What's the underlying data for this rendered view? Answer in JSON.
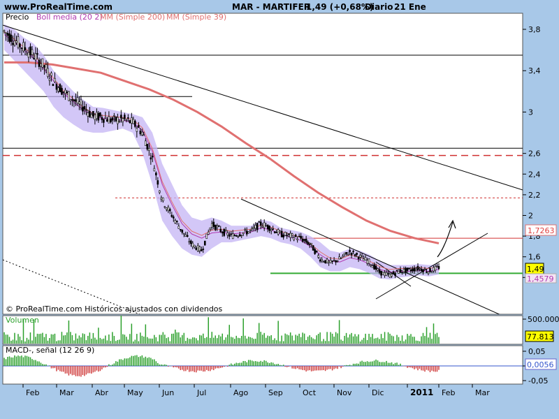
{
  "header": {
    "site": "www.ProRealTime.com",
    "symbol": "MAR - MARTIFER",
    "quote": "1,49 (+0,68%)",
    "period": "Diario",
    "date": "21 Ene"
  },
  "colors": {
    "background": "#a8c8e8",
    "panel": "#ffffff",
    "boll": "#c4b4f4",
    "mm200": "#e07070",
    "mm39": "#b03ab0",
    "macd_pos": "#2ca02c",
    "macd_neg": "#d04040",
    "volume": "#2ca02c",
    "support": "#33aa33"
  },
  "footer_note": "© ProRealTime.com Históricos ajustados con dividendos",
  "chart_data": [
    {
      "type": "candlestick",
      "legend": [
        {
          "label": "Precio",
          "color": "#000000"
        },
        {
          "label": "Boll media (20 2)",
          "color": "#b03ab0"
        },
        {
          "label": "MM (Simple 200)",
          "color": "#e07070"
        },
        {
          "label": "MM (Simple 39)",
          "color": "#e07070"
        }
      ],
      "ylim": [
        1.25,
        3.9
      ],
      "y_ticks": [
        "3,8",
        "3,4",
        "3",
        "2,6",
        "2,4",
        "2,2",
        "2",
        "1,8",
        "1,6",
        "1,4"
      ],
      "y_tick_values": [
        3.8,
        3.4,
        3.0,
        2.6,
        2.4,
        2.2,
        2.0,
        1.8,
        1.6,
        1.4
      ],
      "x_ticks": [
        "Feb",
        "Mar",
        "Abr",
        "May",
        "Jun",
        "Jul",
        "Ago",
        "Sep",
        "Oct",
        "Nov",
        "Dic",
        "2011",
        "Feb",
        "Mar"
      ],
      "price_series": [
        3.78,
        3.7,
        3.62,
        3.55,
        3.45,
        3.3,
        3.2,
        3.12,
        3.05,
        2.96,
        2.95,
        2.92,
        2.93,
        2.9,
        2.8,
        2.55,
        2.15,
        2.0,
        1.85,
        1.72,
        1.66,
        1.92,
        1.85,
        1.8,
        1.83,
        1.85,
        1.92,
        1.88,
        1.82,
        1.8,
        1.78,
        1.72,
        1.58,
        1.54,
        1.58,
        1.65,
        1.6,
        1.55,
        1.45,
        1.42,
        1.46,
        1.47,
        1.49,
        1.46,
        1.5
      ],
      "bollinger_upper": [
        3.85,
        3.8,
        3.72,
        3.66,
        3.55,
        3.4,
        3.3,
        3.2,
        3.12,
        3.05,
        3.04,
        3.02,
        3.0,
        2.98,
        2.95,
        2.8,
        2.5,
        2.3,
        2.1,
        1.98,
        1.95,
        1.98,
        1.95,
        1.9,
        1.9,
        1.9,
        1.96,
        1.94,
        1.88,
        1.86,
        1.84,
        1.8,
        1.74,
        1.66,
        1.64,
        1.68,
        1.66,
        1.62,
        1.56,
        1.52,
        1.52,
        1.52,
        1.53,
        1.52,
        1.53
      ],
      "bollinger_lower": [
        3.6,
        3.5,
        3.4,
        3.3,
        3.2,
        3.05,
        2.95,
        2.88,
        2.82,
        2.8,
        2.8,
        2.82,
        2.84,
        2.8,
        2.6,
        2.3,
        1.95,
        1.8,
        1.68,
        1.62,
        1.6,
        1.68,
        1.74,
        1.74,
        1.76,
        1.78,
        1.8,
        1.78,
        1.74,
        1.72,
        1.68,
        1.6,
        1.5,
        1.46,
        1.46,
        1.5,
        1.48,
        1.44,
        1.39,
        1.38,
        1.4,
        1.41,
        1.42,
        1.41,
        1.43
      ],
      "boll_media_series": [
        3.75,
        3.68,
        3.6,
        3.52,
        3.42,
        3.3,
        3.18,
        3.1,
        3.02,
        2.96,
        2.94,
        2.93,
        2.92,
        2.9,
        2.82,
        2.62,
        2.3,
        2.1,
        1.92,
        1.82,
        1.78,
        1.83,
        1.84,
        1.82,
        1.83,
        1.84,
        1.88,
        1.86,
        1.82,
        1.79,
        1.76,
        1.7,
        1.62,
        1.56,
        1.55,
        1.59,
        1.57,
        1.53,
        1.48,
        1.45,
        1.46,
        1.46,
        1.47,
        1.46,
        1.48
      ],
      "mm200_series": [
        3.48,
        3.48,
        3.46,
        3.42,
        3.38,
        3.3,
        3.22,
        3.12,
        3.0,
        2.86,
        2.7,
        2.55,
        2.38,
        2.22,
        2.08,
        1.95,
        1.85,
        1.78,
        1.73
      ],
      "mm200_label": "1,7263",
      "last_price_label": "1,49",
      "mm39_label": "1,4579",
      "resistance_levels": [
        3.55,
        3.15,
        2.65,
        2.58,
        2.17,
        1.78
      ],
      "support_level": 1.44
    },
    {
      "type": "bar",
      "title": "Volumen",
      "y_ticks": [
        "500.000"
      ],
      "last_value_label": "77.813"
    },
    {
      "type": "bar",
      "title": "MACD-, señal (12 26 9)",
      "y_ticks": [
        "0,05",
        "0",
        "-0,05"
      ],
      "ylim": [
        -0.06,
        0.06
      ],
      "last_value_label": "0,0056"
    }
  ]
}
